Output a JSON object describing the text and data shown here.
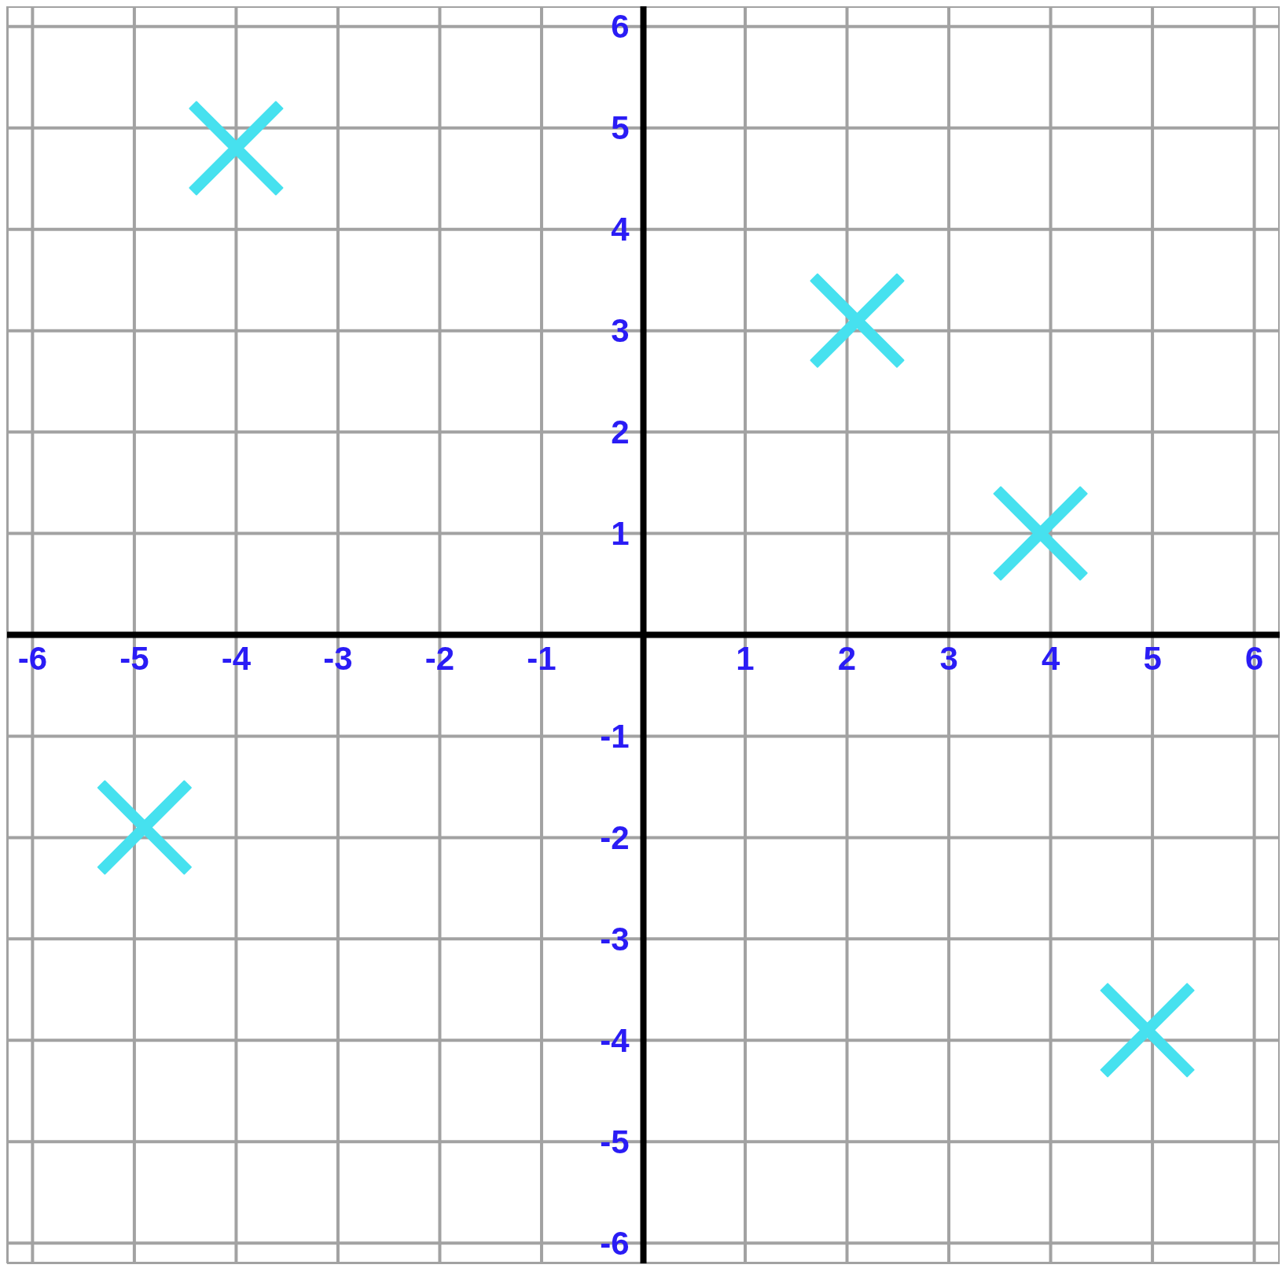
{
  "chart_data": {
    "type": "scatter",
    "x": [
      -4,
      2.1,
      3.9,
      -4.9,
      4.95
    ],
    "series": [
      {
        "color": "#46e1ef",
        "values": [
          4.8,
          3.1,
          1,
          -1.9,
          -3.9
        ]
      }
    ],
    "xlim": [
      -6.25,
      6.25
    ],
    "ylim": [
      -6.2,
      6.2
    ],
    "xticks": [
      -6,
      -5,
      -4,
      -3,
      -2,
      -1,
      1,
      2,
      3,
      4,
      5,
      6
    ],
    "yticks": [
      -6,
      -5,
      -4,
      -3,
      -2,
      -1,
      1,
      2,
      3,
      4,
      5,
      6
    ],
    "grid": true,
    "marker": "cross"
  }
}
